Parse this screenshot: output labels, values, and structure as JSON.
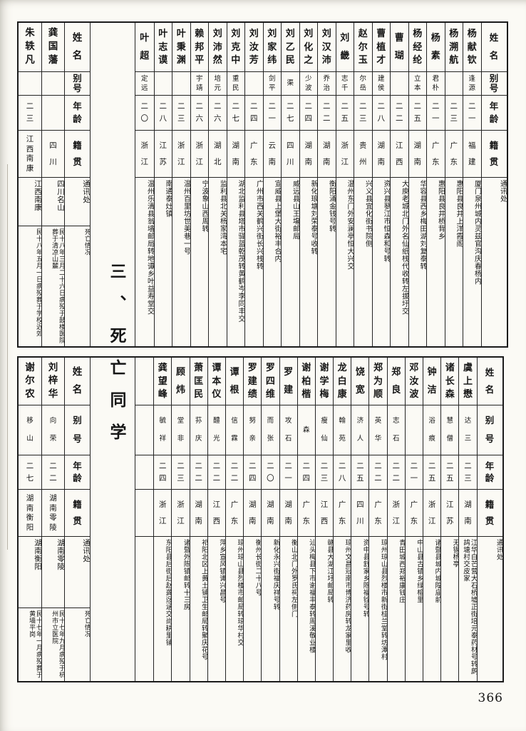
{
  "page": {
    "number": "366"
  },
  "section": {
    "title": "三、死亡同学"
  },
  "headers": {
    "name": "姓名",
    "alias": "别号",
    "age": "年龄",
    "native": "籍贯",
    "address": "通讯处",
    "death": "死亡情况"
  },
  "top_table": {
    "left": [
      {
        "name": "朱轶凡",
        "alias": "",
        "age": "二三",
        "native": "江西南康",
        "address": "江西南康",
        "death": "民十八年五月一日病殁葬于学校近郊"
      },
      {
        "name": "龚国藩",
        "alias": "",
        "age": "",
        "native": "四川",
        "address": "四川名山",
        "death": "民十八年三月二十六日病殁于鼓楼医院葬于清凉山麓"
      }
    ],
    "right": [
      {
        "name": "叶超",
        "alias": "定远",
        "age": "二〇",
        "native": "浙江",
        "address": "温州乐清县翁墙邮局转地谭乡叶益寿堂交"
      },
      {
        "name": "叶志谟",
        "alias": "",
        "age": "二八",
        "native": "江苏",
        "address": "南通泰灶镇"
      },
      {
        "name": "叶秉渊",
        "alias": "",
        "age": "二三",
        "native": "浙江",
        "address": "温州百里坊世美巷一号"
      },
      {
        "name": "赖邦平",
        "alias": "宇靖",
        "age": "二六",
        "native": "浙江",
        "address": "宁波象山西周转"
      },
      {
        "name": "刘沛然",
        "alias": "培元",
        "age": "二六",
        "native": "湖北",
        "address": "监利县北关杨家湾本宅"
      },
      {
        "name": "刘克中",
        "alias": "重民",
        "age": "二七",
        "native": "湖南",
        "address": "湖北监利县塔市驿蓝乾茂转黄鹤岑李同丰交"
      },
      {
        "name": "刘汝芳",
        "alias": "",
        "age": "二四",
        "native": "广东",
        "address": "广州市西关鹤兴街长兴栈转"
      },
      {
        "name": "刘家纬",
        "alias": "剑平",
        "age": "二一",
        "native": "云南",
        "address": "宣威县上堡大街裕丰合内"
      },
      {
        "name": "刘乙民",
        "alias": "渠",
        "age": "二七",
        "native": "四川",
        "address": "威远县山王塲邮局"
      },
      {
        "name": "刘化之",
        "alias": "少波",
        "age": "二四",
        "native": "湖南",
        "address": "新化琅塘刘荣泰号收转"
      },
      {
        "name": "刘汉沛",
        "alias": "乔治",
        "age": "二二",
        "native": "湖南",
        "address": "衡阳涌金钱号转"
      },
      {
        "name": "刘畿",
        "alias": "志千",
        "age": "二五",
        "native": "浙江",
        "address": "温州东门外安澜亭恒大兴交"
      },
      {
        "name": "赵尔玉",
        "alias": "尔岳",
        "age": "二三",
        "native": "贵州",
        "address": "兴义县宜化街书院侧"
      },
      {
        "name": "曹植才",
        "alias": "建侯",
        "age": "二八",
        "native": "湖南",
        "address": "资兴县蓼江市恒森和号转"
      },
      {
        "name": "曹瑚",
        "alias": "",
        "age": "二二",
        "native": "江西",
        "address": "大庾老城北门外名仙纸栈代收转左拔圩交"
      },
      {
        "name": "杨经纶",
        "alias": "立本",
        "age": "二五",
        "native": "湖南",
        "address": "华容县西乡梅田湖刘复泰转"
      },
      {
        "name": "杨素",
        "alias": "君朴",
        "age": "二一",
        "native": "广东",
        "address": "惠阳县良井桥背乡"
      },
      {
        "name": "杨溯航",
        "alias": "",
        "age": "二三",
        "native": "广东",
        "address": "惠阳县良井上洋霞阁"
      },
      {
        "name": "杨献钦",
        "alias": "逢源",
        "age": "二一",
        "native": "福建",
        "address": "厦门泉州城内灵兹官沟庆春杨内"
      }
    ]
  },
  "bottom_table": {
    "left": [
      {
        "name": "谢尔农",
        "alias": "移山",
        "age": "二七",
        "native": "湖南衡阳",
        "address": "湖南衡阳",
        "death": "民十七年一月病殁葬于黄墙平岗"
      },
      {
        "name": "刘梓华",
        "alias": "向荣",
        "age": "二二",
        "native": "湖南零陵",
        "address": "湖南零陵",
        "death": "民十七年九月病殁于杭州市立医院"
      }
    ],
    "right": [
      {
        "name": "",
        "alias": "",
        "age": "",
        "native": "",
        "address": ""
      },
      {
        "name": "龚望峰",
        "alias": "毓祥",
        "age": "二四",
        "native": "浙江",
        "address": "东阳县后街后赵龚迓涵交尚耕里铺"
      },
      {
        "name": "顾炜",
        "alias": "堂非",
        "age": "二三",
        "native": "浙江",
        "address": "诸暨外陈镇邮转十三房"
      },
      {
        "name": "萧匡民",
        "alias": "荪庆",
        "age": "二二",
        "native": "湖南",
        "address": "祁阳北区上黄土铺卫生邮局转聚庆花号"
      },
      {
        "name": "谭本仪",
        "alias": "醴光",
        "age": "二二",
        "native": "江西",
        "address": "萍乡宣风镇谭兴昌号"
      },
      {
        "name": "谭根",
        "alias": "信霖",
        "age": "二二",
        "native": "广东",
        "address": "琼州琼山县烈楼市邮局转琼华村交"
      },
      {
        "name": "罗建绩",
        "alias": "努亲",
        "age": "二四",
        "native": "湖南",
        "address": "衡州长街二十八号"
      },
      {
        "name": "罗四维",
        "alias": "而张",
        "age": "二〇",
        "native": "湖南",
        "address": "新化永兴街福庆祥号转"
      },
      {
        "name": "罗建",
        "alias": "攻石",
        "age": "二一",
        "native": "湖南",
        "address": "衡山北门外罗氏祠左侧门"
      },
      {
        "name": "谢柏楷",
        "alias": "森",
        "age": "二四",
        "native": "广东",
        "address": "汕头梅县下市谢福丰泰转周溪敬业楼"
      },
      {
        "name": "谢学梅",
        "alias": "瘦仙",
        "age": "二三",
        "native": "江西",
        "address": "赣县大湖江圩邮局转"
      },
      {
        "name": "龙白康",
        "alias": "翰苑",
        "age": "二八",
        "native": "广东",
        "address": "琼州文昌冠南市博济药房转龙家里收"
      },
      {
        "name": "饶宽",
        "alias": "济人",
        "age": "二五",
        "native": "四川",
        "address": "资中县舒家乡陈福铨号转"
      },
      {
        "name": "郑为顺",
        "alias": "英华",
        "age": "二二",
        "native": "广东",
        "address": "琼州琼山县烈楼市新街桂兰堂转坊潭村"
      },
      {
        "name": "郑良",
        "alias": "志石",
        "age": "二二",
        "native": "浙江",
        "address": "青田城西郑裕康钱庄"
      },
      {
        "name": "邓汝波",
        "alias": "",
        "age": "二一",
        "native": "广东",
        "address": "中山县古镇乡绿榕里"
      },
      {
        "name": "钟洁",
        "alias": "浴痕",
        "age": "二五",
        "native": "浙江",
        "address": "诸暨县城内城隍庙前"
      },
      {
        "name": "诸长森",
        "alias": "慧僧",
        "age": "二五",
        "native": "江苏",
        "address": "无锡杨亭"
      },
      {
        "name": "虞上懋",
        "alias": "达三",
        "age": "二三",
        "native": "湖南",
        "address": "江华白芒营大石桥墟正街培元泰药材号转鹧鸪塘村交皮家"
      }
    ]
  }
}
